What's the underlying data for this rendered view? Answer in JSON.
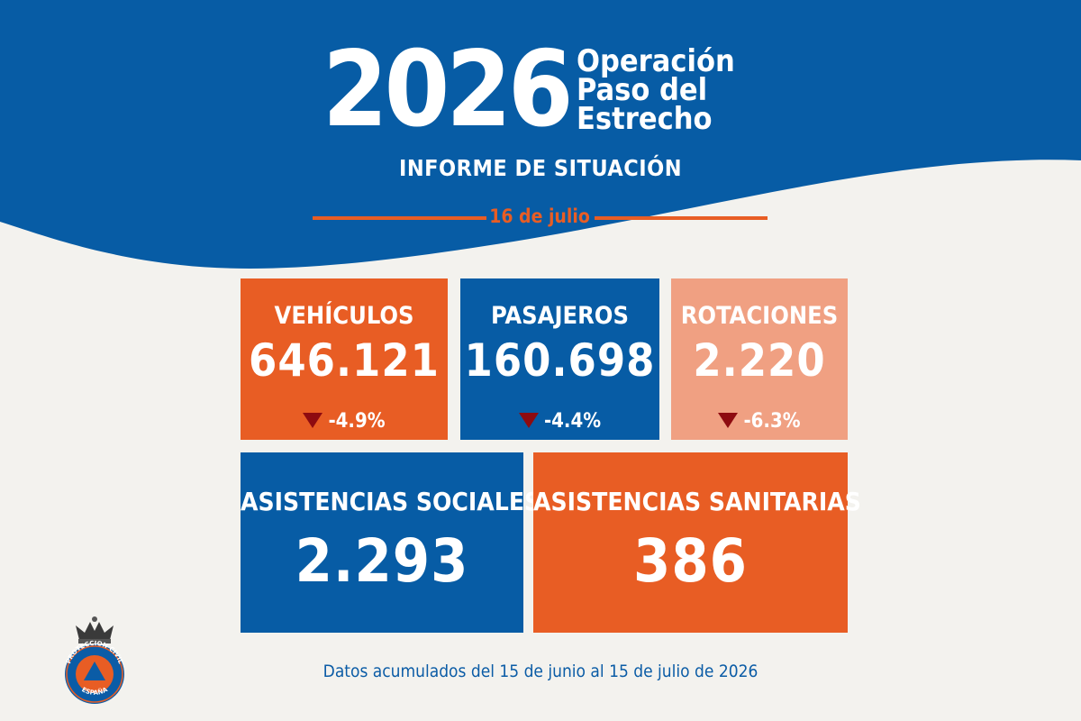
{
  "header": {
    "year": "2026",
    "operation_title": [
      "Operación",
      "Paso del",
      "Estrecho"
    ],
    "subtitle": "INFORME DE SITUACIÓN",
    "date": "16 de julio"
  },
  "stats": {
    "vehiculos": {
      "label": "VEHÍCULOS",
      "value": "646.121",
      "change": "-4.9%",
      "trend": "down"
    },
    "pasajeros": {
      "label": "PASAJEROS",
      "value": "160.698",
      "change": "-4.4%",
      "trend": "down"
    },
    "rotaciones": {
      "label": "ROTACIONES",
      "value": "2.220",
      "change": "-6.3%",
      "trend": "down"
    },
    "asistencias_sociales": {
      "label": "ASISTENCIAS SOCIALES",
      "value": "2.293"
    },
    "asistencias_sanitarias": {
      "label": "ASISTENCIAS SANITARIAS",
      "value": "386"
    }
  },
  "footer": {
    "note": "Datos acumulados del 15 de junio al 15 de julio de 2026"
  },
  "logo": {
    "ring_text_top": "PROTECCION CIVIL",
    "ring_text_bottom": "ESPAÑA"
  },
  "colors": {
    "blue": "#075ca5",
    "orange": "#e85d24",
    "light_orange": "#f0a082",
    "dark_red": "#8e0b10",
    "background": "#f3f2ee"
  },
  "icons": {
    "trend_down": "down-triangle-icon",
    "logo_crown": "crown-icon"
  }
}
